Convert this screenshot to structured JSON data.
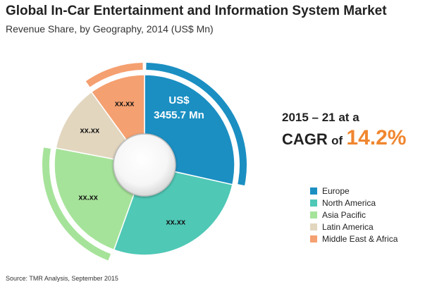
{
  "chart_data": {
    "type": "pie",
    "title": "Global In-Car Entertainment and Information System Market",
    "subtitle": "Revenue Share, by Geography, 2014 (US$ Mn)",
    "total": {
      "line1": "US$",
      "line2": "3455.7 Mn"
    },
    "categories": [
      "Europe",
      "North America",
      "Asia Pacific",
      "Latin America",
      "Middle East & Africa"
    ],
    "values": [
      0.285,
      0.27,
      0.225,
      0.12,
      0.1
    ],
    "labels": [
      "",
      "xx.xx",
      "xx.xx",
      "xx.xx",
      "xx.xx"
    ],
    "colors": [
      "#1b8fc2",
      "#4fc8b6",
      "#a6e39a",
      "#e2d6bf",
      "#f5a070"
    ],
    "outer_arcs": [
      {
        "series": "Europe",
        "color": "#1b8fc2"
      },
      {
        "series": "Middle East & Africa",
        "color": "#f5a070"
      },
      {
        "series": "Asia Pacific",
        "color": "#a6e39a"
      }
    ],
    "legend_position": "bottom-right"
  },
  "cagr": {
    "period": "2015 – 21 at a",
    "word": "CAGR",
    "of": "of",
    "value": "14.2%"
  },
  "source": "Source: TMR Analysis, September 2015"
}
